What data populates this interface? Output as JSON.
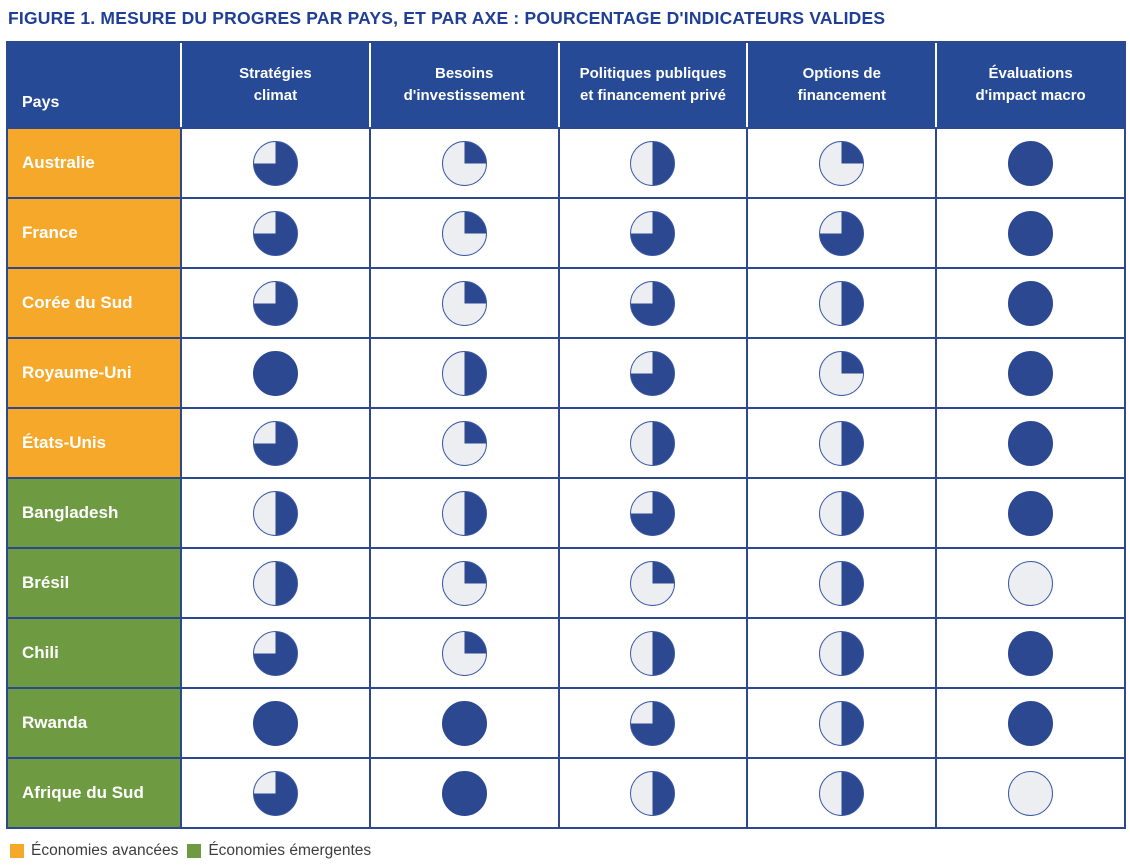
{
  "title": "FIGURE 1. MESURE DU PROGRES PAR PAYS, ET PAR AXE : POURCENTAGE D'INDICATEURS VALIDES",
  "colors": {
    "navy_fill": "#2b4891",
    "empty_fill": "#edeef2",
    "header_bg": "#274a96",
    "advanced": "#f6a82b",
    "emerging": "#6e9b41"
  },
  "chart_data": {
    "type": "table",
    "title": "FIGURE 1. MESURE DU PROGRES PAR PAYS, ET PAR AXE : POURCENTAGE D'INDICATEURS VALIDES",
    "pays_header": "Pays",
    "columns": [
      "Stratégies\nclimat",
      "Besoins\nd'investissement",
      "Politiques publiques\net financement privé",
      "Options de\nfinancement",
      "Évaluations\nd'impact macro"
    ],
    "rows": [
      {
        "country": "Australie",
        "group": "advanced",
        "values_pct": [
          75,
          25,
          50,
          25,
          100
        ]
      },
      {
        "country": "France",
        "group": "advanced",
        "values_pct": [
          75,
          25,
          75,
          75,
          100
        ]
      },
      {
        "country": "Corée du Sud",
        "group": "advanced",
        "values_pct": [
          75,
          25,
          75,
          50,
          100
        ]
      },
      {
        "country": "Royaume-Uni",
        "group": "advanced",
        "values_pct": [
          100,
          50,
          75,
          25,
          100
        ]
      },
      {
        "country": "États-Unis",
        "group": "advanced",
        "values_pct": [
          75,
          25,
          50,
          50,
          100
        ]
      },
      {
        "country": "Bangladesh",
        "group": "emerging",
        "values_pct": [
          50,
          50,
          75,
          50,
          100
        ]
      },
      {
        "country": "Brésil",
        "group": "emerging",
        "values_pct": [
          50,
          25,
          25,
          50,
          0
        ]
      },
      {
        "country": "Chili",
        "group": "emerging",
        "values_pct": [
          75,
          25,
          50,
          50,
          100
        ]
      },
      {
        "country": "Rwanda",
        "group": "emerging",
        "values_pct": [
          100,
          100,
          75,
          50,
          100
        ]
      },
      {
        "country": "Afrique du Sud",
        "group": "emerging",
        "values_pct": [
          75,
          100,
          50,
          50,
          0
        ]
      }
    ],
    "legend": [
      {
        "label": "Économies avancées",
        "color": "#f6a82b"
      },
      {
        "label": "Économies émergentes",
        "color": "#6e9b41"
      }
    ]
  }
}
